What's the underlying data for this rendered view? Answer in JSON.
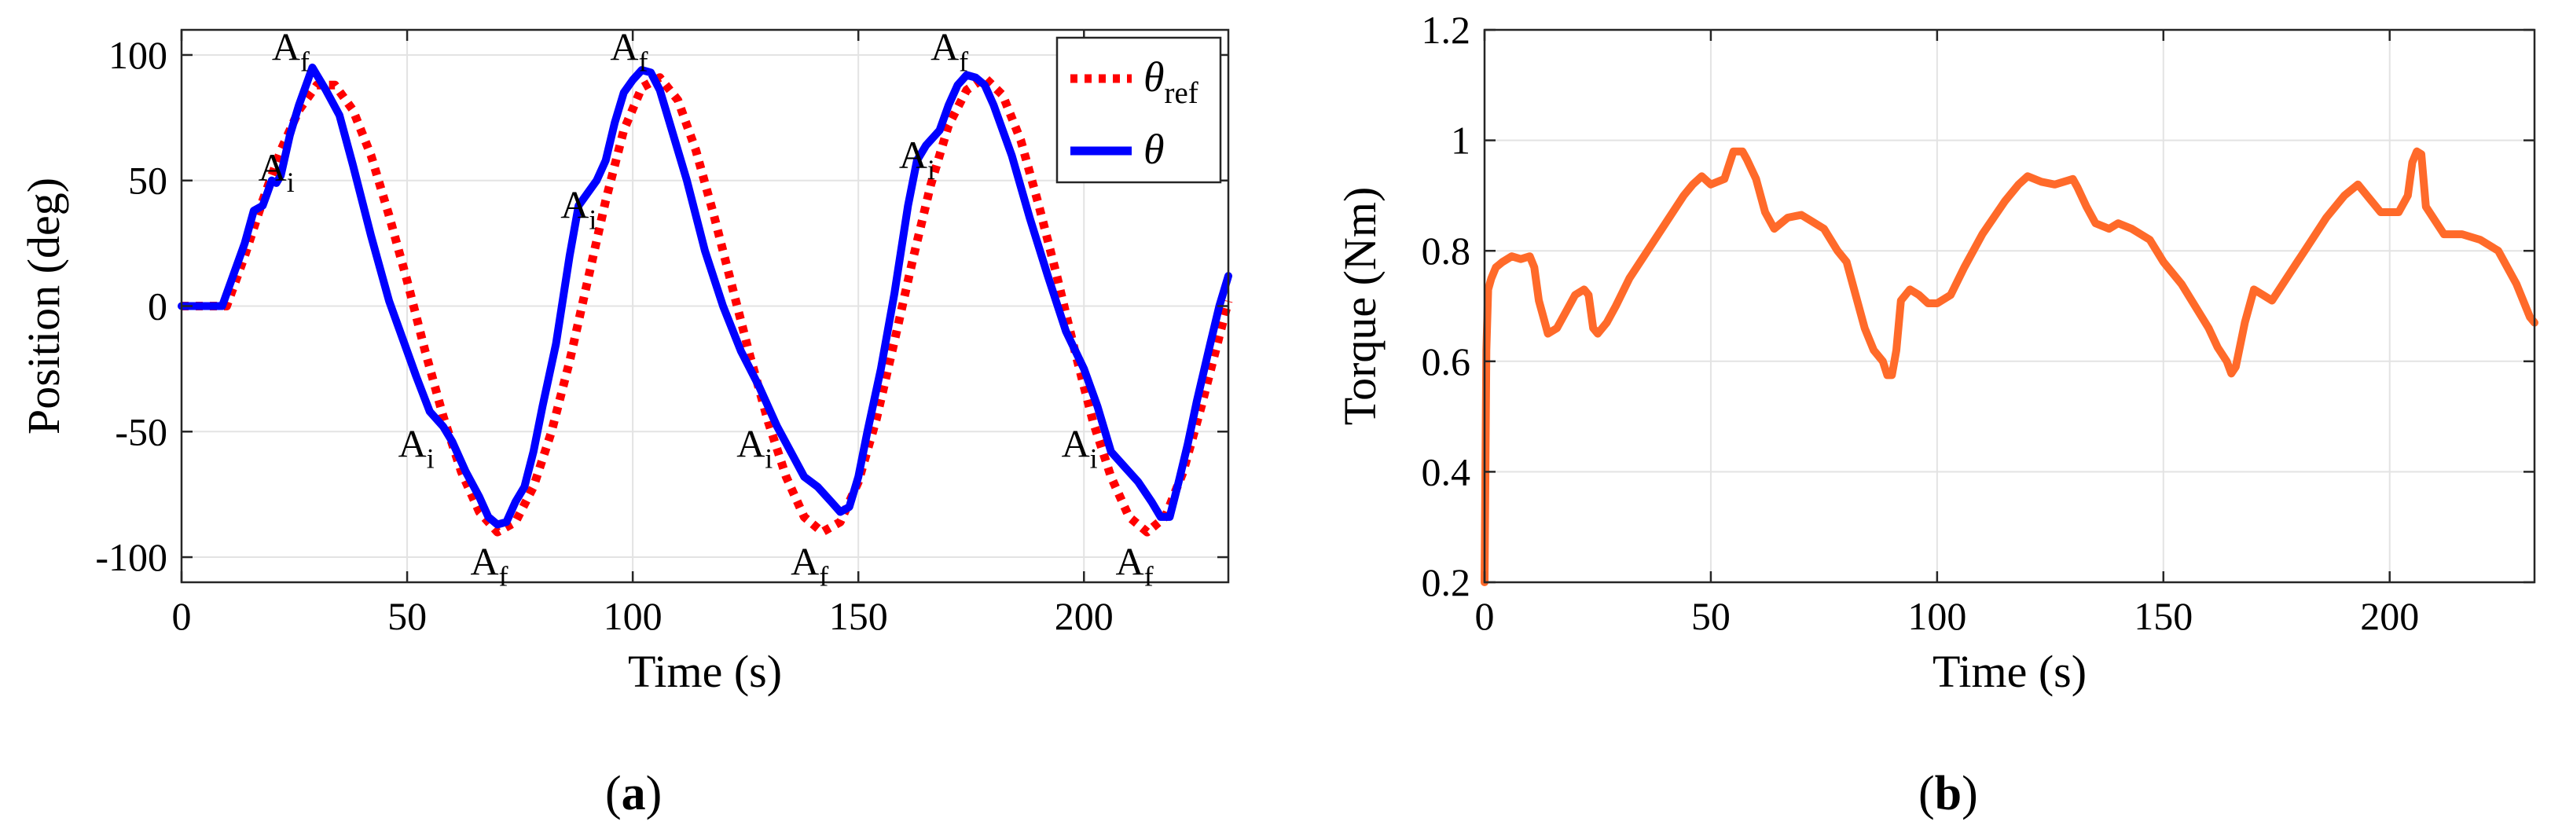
{
  "chart_data": [
    {
      "type": "line",
      "panel": "a",
      "caption_letter": "a",
      "xlabel": "Time (s)",
      "ylabel": "Position (deg)",
      "xlim": [
        0,
        232
      ],
      "ylim": [
        -110,
        110
      ],
      "xticks": [
        0,
        50,
        100,
        150,
        200
      ],
      "yticks": [
        -100,
        -50,
        0,
        50,
        100
      ],
      "grid": true,
      "legend_position": "top-right",
      "series": [
        {
          "name": "θ_ref",
          "legend_main": "θ",
          "legend_sub": "ref",
          "color": "#ff0000",
          "style": "dotted",
          "x": [
            0,
            10,
            14,
            18,
            22,
            26,
            30,
            34,
            38,
            42,
            46,
            50,
            54,
            58,
            62,
            66,
            70,
            74,
            78,
            82,
            86,
            90,
            94,
            98,
            102,
            106,
            110,
            114,
            118,
            122,
            126,
            130,
            134,
            138,
            142,
            146,
            150,
            154,
            158,
            162,
            166,
            170,
            174,
            178,
            182,
            186,
            190,
            194,
            198,
            202,
            206,
            210,
            214,
            218,
            222,
            226,
            230,
            232
          ],
          "y": [
            0,
            0,
            20,
            42,
            62,
            78,
            88,
            88,
            78,
            60,
            36,
            10,
            -18,
            -44,
            -66,
            -82,
            -90,
            -86,
            -72,
            -50,
            -22,
            10,
            42,
            70,
            87,
            91,
            82,
            62,
            36,
            8,
            -20,
            -46,
            -68,
            -84,
            -90,
            -86,
            -70,
            -45,
            -14,
            18,
            48,
            72,
            86,
            91,
            84,
            66,
            40,
            12,
            -18,
            -46,
            -68,
            -84,
            -90,
            -84,
            -66,
            -40,
            -12,
            2
          ]
        },
        {
          "name": "θ",
          "legend_main": "θ",
          "legend_sub": "",
          "color": "#0000ff",
          "style": "solid",
          "x": [
            0,
            9,
            12,
            14,
            16,
            18,
            19,
            20,
            21,
            22,
            24,
            26,
            28,
            29,
            30,
            32,
            35,
            38,
            42,
            46,
            50,
            52,
            55,
            58,
            60,
            63,
            66,
            68,
            70,
            72,
            74,
            76,
            78,
            80,
            83,
            86,
            88,
            90,
            92,
            94,
            96,
            98,
            100,
            102,
            104,
            106,
            108,
            112,
            116,
            120,
            124,
            128,
            132,
            135,
            138,
            141,
            144,
            146,
            148,
            150,
            152,
            155,
            158,
            161,
            163,
            165,
            168,
            170,
            172,
            174,
            176,
            178,
            180,
            184,
            188,
            192,
            196,
            200,
            203,
            206,
            209,
            212,
            215,
            217,
            219,
            221,
            223,
            225,
            228,
            230,
            232
          ],
          "y": [
            0,
            0,
            15,
            25,
            38,
            40,
            45,
            50,
            49,
            52,
            68,
            80,
            90,
            95,
            92,
            86,
            76,
            56,
            28,
            2,
            -18,
            -28,
            -42,
            -48,
            -54,
            -66,
            -76,
            -84,
            -87,
            -86,
            -78,
            -72,
            -58,
            -40,
            -15,
            20,
            40,
            45,
            50,
            58,
            73,
            85,
            90,
            94,
            93,
            86,
            74,
            50,
            22,
            0,
            -18,
            -32,
            -48,
            -58,
            -68,
            -72,
            -78,
            -82,
            -80,
            -68,
            -50,
            -25,
            5,
            40,
            58,
            64,
            70,
            80,
            88,
            92,
            91,
            88,
            80,
            60,
            35,
            12,
            -10,
            -25,
            -40,
            -58,
            -64,
            -70,
            -78,
            -84,
            -84,
            -70,
            -55,
            -38,
            -15,
            0,
            12
          ]
        }
      ],
      "annotations": [
        {
          "main": "A",
          "sub": "i",
          "x": 17,
          "y": 55
        },
        {
          "main": "A",
          "sub": "f",
          "x": 20,
          "y": 103
        },
        {
          "main": "A",
          "sub": "i",
          "x": 48,
          "y": -55
        },
        {
          "main": "A",
          "sub": "f",
          "x": 64,
          "y": -102
        },
        {
          "main": "A",
          "sub": "i",
          "x": 84,
          "y": 40
        },
        {
          "main": "A",
          "sub": "f",
          "x": 95,
          "y": 103
        },
        {
          "main": "A",
          "sub": "i",
          "x": 123,
          "y": -55
        },
        {
          "main": "A",
          "sub": "f",
          "x": 135,
          "y": -102
        },
        {
          "main": "A",
          "sub": "i",
          "x": 159,
          "y": 60
        },
        {
          "main": "A",
          "sub": "f",
          "x": 166,
          "y": 103
        },
        {
          "main": "A",
          "sub": "i",
          "x": 195,
          "y": -55
        },
        {
          "main": "A",
          "sub": "f",
          "x": 207,
          "y": -102
        }
      ]
    },
    {
      "type": "line",
      "panel": "b",
      "caption_letter": "b",
      "xlabel": "Time (s)",
      "ylabel": "Torque (Nm)",
      "xlim": [
        0,
        232
      ],
      "ylim": [
        0.2,
        1.2
      ],
      "xticks": [
        0,
        50,
        100,
        150,
        200
      ],
      "yticks": [
        0.2,
        0.4,
        0.6,
        0.8,
        1,
        1.2
      ],
      "ytick_labels": [
        "0.2",
        "0.4",
        "0.6",
        "0.8",
        "1",
        "1.2"
      ],
      "grid": true,
      "series": [
        {
          "name": "Torque",
          "color": "#ff6a2a",
          "style": "solid",
          "x": [
            0,
            0.4,
            0.8,
            1.5,
            2.5,
            4,
            6,
            8,
            10,
            11,
            12,
            13,
            14,
            16,
            18,
            20,
            22,
            23,
            24,
            25,
            27,
            29,
            32,
            36,
            40,
            44,
            46,
            48,
            50,
            53,
            55,
            57,
            58,
            60,
            62,
            64,
            67,
            70,
            72,
            75,
            78,
            80,
            82,
            84,
            86,
            88,
            89,
            90,
            91,
            92,
            94,
            96,
            98,
            100,
            103,
            106,
            110,
            115,
            118,
            120,
            123,
            126,
            130,
            131,
            133,
            135,
            138,
            140,
            143,
            147,
            150,
            154,
            157,
            160,
            162,
            164,
            165,
            166,
            168,
            170,
            172,
            174,
            178,
            182,
            186,
            190,
            193,
            195,
            198,
            202,
            204,
            205,
            206,
            207,
            208,
            212,
            216,
            220,
            224,
            228,
            231,
            232
          ],
          "y": [
            0.2,
            0.62,
            0.73,
            0.75,
            0.77,
            0.78,
            0.79,
            0.785,
            0.79,
            0.77,
            0.71,
            0.68,
            0.65,
            0.66,
            0.69,
            0.72,
            0.73,
            0.72,
            0.66,
            0.65,
            0.67,
            0.7,
            0.75,
            0.8,
            0.85,
            0.9,
            0.92,
            0.935,
            0.92,
            0.93,
            0.98,
            0.98,
            0.965,
            0.93,
            0.87,
            0.84,
            0.86,
            0.865,
            0.855,
            0.84,
            0.8,
            0.78,
            0.72,
            0.66,
            0.62,
            0.6,
            0.575,
            0.575,
            0.62,
            0.71,
            0.73,
            0.72,
            0.705,
            0.705,
            0.72,
            0.77,
            0.83,
            0.89,
            0.92,
            0.935,
            0.925,
            0.92,
            0.93,
            0.915,
            0.88,
            0.85,
            0.84,
            0.85,
            0.84,
            0.82,
            0.78,
            0.74,
            0.7,
            0.66,
            0.625,
            0.6,
            0.578,
            0.59,
            0.67,
            0.73,
            0.72,
            0.71,
            0.76,
            0.81,
            0.86,
            0.9,
            0.92,
            0.9,
            0.87,
            0.87,
            0.9,
            0.96,
            0.98,
            0.975,
            0.88,
            0.83,
            0.83,
            0.82,
            0.8,
            0.74,
            0.68,
            0.67
          ]
        }
      ]
    }
  ]
}
